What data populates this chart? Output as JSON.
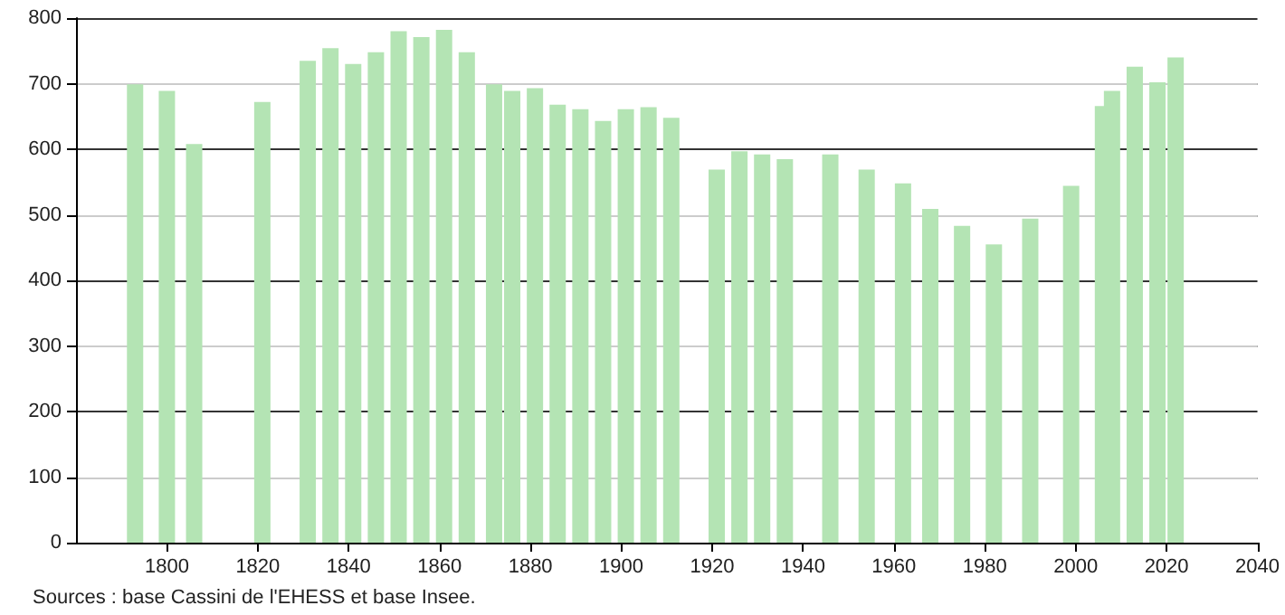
{
  "chart_data": {
    "type": "bar",
    "x": [
      1793,
      1800,
      1806,
      1821,
      1831,
      1836,
      1841,
      1846,
      1851,
      1856,
      1861,
      1866,
      1872,
      1876,
      1881,
      1886,
      1891,
      1896,
      1901,
      1906,
      1911,
      1921,
      1926,
      1931,
      1936,
      1946,
      1954,
      1962,
      1968,
      1975,
      1982,
      1990,
      1999,
      2006,
      2008,
      2013,
      2018,
      2022
    ],
    "values": [
      699,
      689,
      608,
      672,
      735,
      754,
      730,
      748,
      780,
      771,
      782,
      748,
      699,
      689,
      693,
      668,
      661,
      643,
      661,
      664,
      648,
      569,
      597,
      592,
      585,
      592,
      569,
      548,
      509,
      483,
      455,
      494,
      544,
      666,
      689,
      726,
      702,
      740
    ],
    "color": "#b4e4b4",
    "xlim": [
      1780,
      2040
    ],
    "xticks": [
      1800,
      1820,
      1840,
      1860,
      1880,
      1900,
      1920,
      1940,
      1960,
      1980,
      2000,
      2020,
      2040
    ],
    "ylim": [
      0,
      800
    ],
    "yticks": [
      0,
      100,
      200,
      300,
      400,
      500,
      600,
      700,
      800
    ],
    "grid": "y",
    "annotations": [
      "Sources : base Cassini de l'EHESS et base Insee."
    ]
  }
}
